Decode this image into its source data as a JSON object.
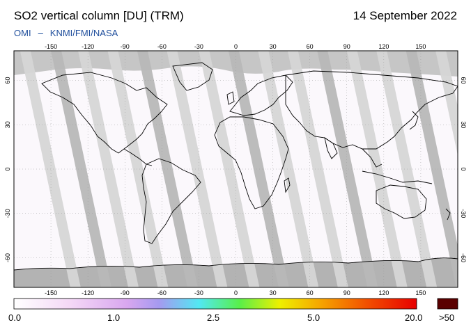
{
  "header": {
    "title": "SO2 vertical column [DU] (TRM)",
    "date": "14 September 2022",
    "source_left": "OMI",
    "source_sep": "–",
    "source_right": "KNMI/FMI/NASA"
  },
  "map": {
    "projection": "equirectangular",
    "lon_ticks": [
      "-150",
      "-120",
      "-90",
      "-60",
      "-30",
      "0",
      "30",
      "60",
      "90",
      "120",
      "150"
    ],
    "lat_ticks": [
      "60",
      "30",
      "0",
      "-30",
      "-60"
    ],
    "colors": {
      "background": "#fbf8fc",
      "no_data": "#c6c6c6",
      "swath_gap": "#d9d9d9",
      "land_outline": "#000000"
    }
  },
  "colorbar": {
    "labels": [
      "0.0",
      "1.0",
      "2.5",
      "5.0",
      "20.0",
      ">50"
    ],
    "stops": [
      "#ffffff",
      "#f4d8f6",
      "#d9a7ef",
      "#a59af0",
      "#52e8f2",
      "#58ef4a",
      "#eef000",
      "#f6a600",
      "#f24d00",
      "#e70000"
    ],
    "overflow_color": "#5a0000"
  }
}
